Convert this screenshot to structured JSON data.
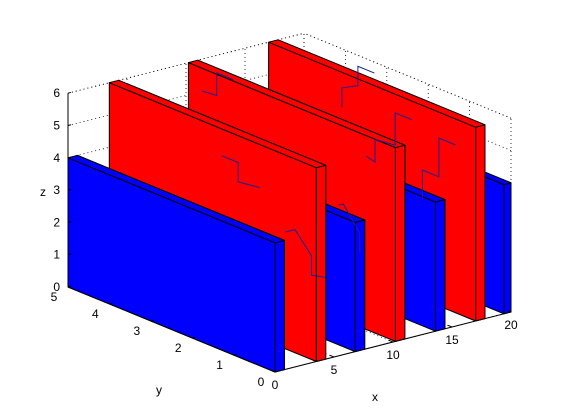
{
  "chart_data": {
    "type": "bar3d",
    "xlabel": "x",
    "ylabel": "y",
    "zlabel": "z",
    "xlim": [
      0,
      20
    ],
    "ylim": [
      0,
      5
    ],
    "zlim": [
      0,
      6
    ],
    "x_ticks": [
      "0",
      "5",
      "10",
      "15",
      "20"
    ],
    "y_ticks": [
      "0",
      "1",
      "2",
      "3",
      "4",
      "5"
    ],
    "z_ticks": [
      "0",
      "1",
      "2",
      "3",
      "4",
      "5",
      "6"
    ],
    "grid": true,
    "colors": {
      "low_walls": "#0000ff",
      "high_walls": "#ff0000",
      "trace": "#1f1f8f"
    },
    "walls": [
      {
        "x0": 0.0,
        "x1": 0.8,
        "y0": 0,
        "y1": 5,
        "z": 4,
        "color": "blue"
      },
      {
        "x0": 3.5,
        "x1": 4.3,
        "y0": 0,
        "y1": 5,
        "z": 6,
        "color": "red"
      },
      {
        "x0": 6.8,
        "x1": 7.6,
        "y0": 0,
        "y1": 5,
        "z": 4,
        "color": "blue"
      },
      {
        "x0": 10.2,
        "x1": 11.0,
        "y0": 0,
        "y1": 5,
        "z": 6,
        "color": "red"
      },
      {
        "x0": 13.6,
        "x1": 14.4,
        "y0": 0,
        "y1": 5,
        "z": 4,
        "color": "blue"
      },
      {
        "x0": 17.0,
        "x1": 17.8,
        "y0": 0,
        "y1": 5,
        "z": 6,
        "color": "red"
      },
      {
        "x0": 19.4,
        "x1": 20.0,
        "y0": 0,
        "y1": 5,
        "z": 4,
        "color": "blue"
      }
    ]
  }
}
